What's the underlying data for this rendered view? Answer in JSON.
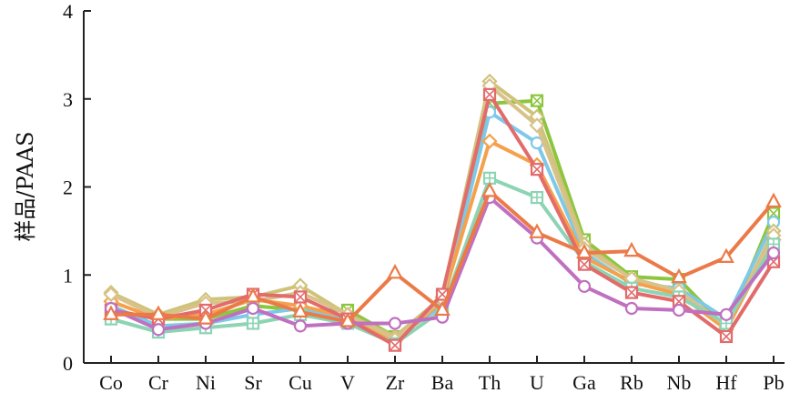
{
  "chart_data": {
    "type": "line",
    "ylabel": "样品/PAAS",
    "xlabel": "",
    "ylim": [
      0,
      4
    ],
    "yticks": [
      "0",
      "1",
      "2",
      "3",
      "4"
    ],
    "categories": [
      "Co",
      "Cr",
      "Ni",
      "Sr",
      "Cu",
      "V",
      "Zr",
      "Ba",
      "Th",
      "U",
      "Ga",
      "Rb",
      "Nb",
      "Hf",
      "Pb"
    ],
    "grid": false,
    "legend": "none",
    "series": [
      {
        "color": "#8cc63f",
        "marker": "square-x",
        "values": [
          0.6,
          0.5,
          0.5,
          0.65,
          0.6,
          0.6,
          0.3,
          0.7,
          2.95,
          2.98,
          1.4,
          0.98,
          0.95,
          0.4,
          1.7
        ]
      },
      {
        "color": "#7ec8e8",
        "marker": "circle",
        "values": [
          0.65,
          0.42,
          0.45,
          0.55,
          0.62,
          0.5,
          0.28,
          0.65,
          2.85,
          2.5,
          1.25,
          0.9,
          0.85,
          0.5,
          1.6
        ]
      },
      {
        "color": "#cfc37a",
        "marker": "diamond",
        "values": [
          0.8,
          0.55,
          0.72,
          0.75,
          0.88,
          0.55,
          0.3,
          0.75,
          3.2,
          2.8,
          1.35,
          0.95,
          0.8,
          0.4,
          1.5
        ]
      },
      {
        "color": "#f5a04a",
        "marker": "diamond",
        "values": [
          0.7,
          0.5,
          0.55,
          0.72,
          0.65,
          0.52,
          0.25,
          0.7,
          2.52,
          2.25,
          1.2,
          0.92,
          0.78,
          0.38,
          1.4
        ]
      },
      {
        "color": "#d9c28a",
        "marker": "diamond",
        "values": [
          0.78,
          0.52,
          0.68,
          0.7,
          0.8,
          0.55,
          0.27,
          0.72,
          3.15,
          2.7,
          1.3,
          0.96,
          0.82,
          0.42,
          1.45
        ]
      },
      {
        "color": "#8cd4b4",
        "marker": "square-plus",
        "values": [
          0.5,
          0.35,
          0.4,
          0.45,
          0.55,
          0.45,
          0.22,
          0.6,
          2.1,
          1.88,
          1.15,
          0.85,
          0.75,
          0.45,
          1.35
        ]
      },
      {
        "color": "#e26b6b",
        "marker": "square-x",
        "values": [
          0.6,
          0.5,
          0.6,
          0.78,
          0.75,
          0.5,
          0.2,
          0.78,
          3.05,
          2.2,
          1.12,
          0.8,
          0.7,
          0.3,
          1.15
        ]
      },
      {
        "color": "#c070c0",
        "marker": "circle",
        "values": [
          0.62,
          0.38,
          0.45,
          0.62,
          0.42,
          0.45,
          0.45,
          0.52,
          1.88,
          1.42,
          0.87,
          0.62,
          0.6,
          0.55,
          1.25
        ]
      },
      {
        "color": "#ec7a48",
        "marker": "triangle",
        "values": [
          0.55,
          0.55,
          0.5,
          0.75,
          0.58,
          0.47,
          1.02,
          0.6,
          1.95,
          1.48,
          1.25,
          1.27,
          0.97,
          1.2,
          1.83
        ]
      }
    ]
  }
}
